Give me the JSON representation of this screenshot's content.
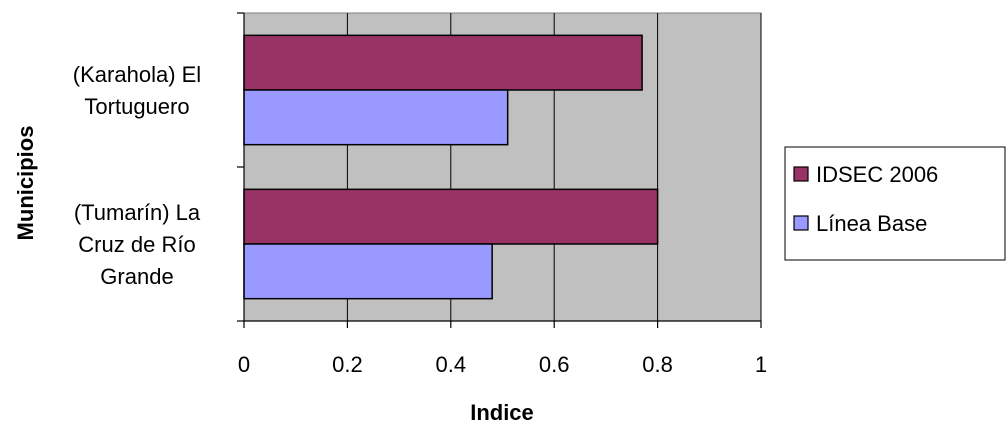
{
  "chart_data": {
    "type": "bar",
    "orientation": "horizontal",
    "categories": [
      "(Karahola) El Tortuguero",
      "(Tumarín) La Cruz de Río Grande"
    ],
    "category_label_lines": [
      [
        "(Karahola) El",
        "Tortuguero"
      ],
      [
        "(Tumarín) La",
        "Cruz de Río",
        "Grande"
      ]
    ],
    "series": [
      {
        "name": "IDSEC 2006",
        "values": [
          0.77,
          0.8
        ],
        "color": "#993366"
      },
      {
        "name": "Línea Base",
        "values": [
          0.51,
          0.48
        ],
        "color": "#9999ff"
      }
    ],
    "title": "",
    "xlabel": "Indice",
    "ylabel": "Municipios",
    "xlim": [
      0,
      1
    ],
    "x_ticks": [
      0,
      0.2,
      0.4,
      0.6,
      0.8,
      1
    ],
    "x_tick_labels": [
      "0",
      "0.2",
      "0.4",
      "0.6",
      "0.8",
      "1"
    ],
    "grid": "vertical",
    "plot_background": "#c0c0c0",
    "legend_position": "right"
  }
}
